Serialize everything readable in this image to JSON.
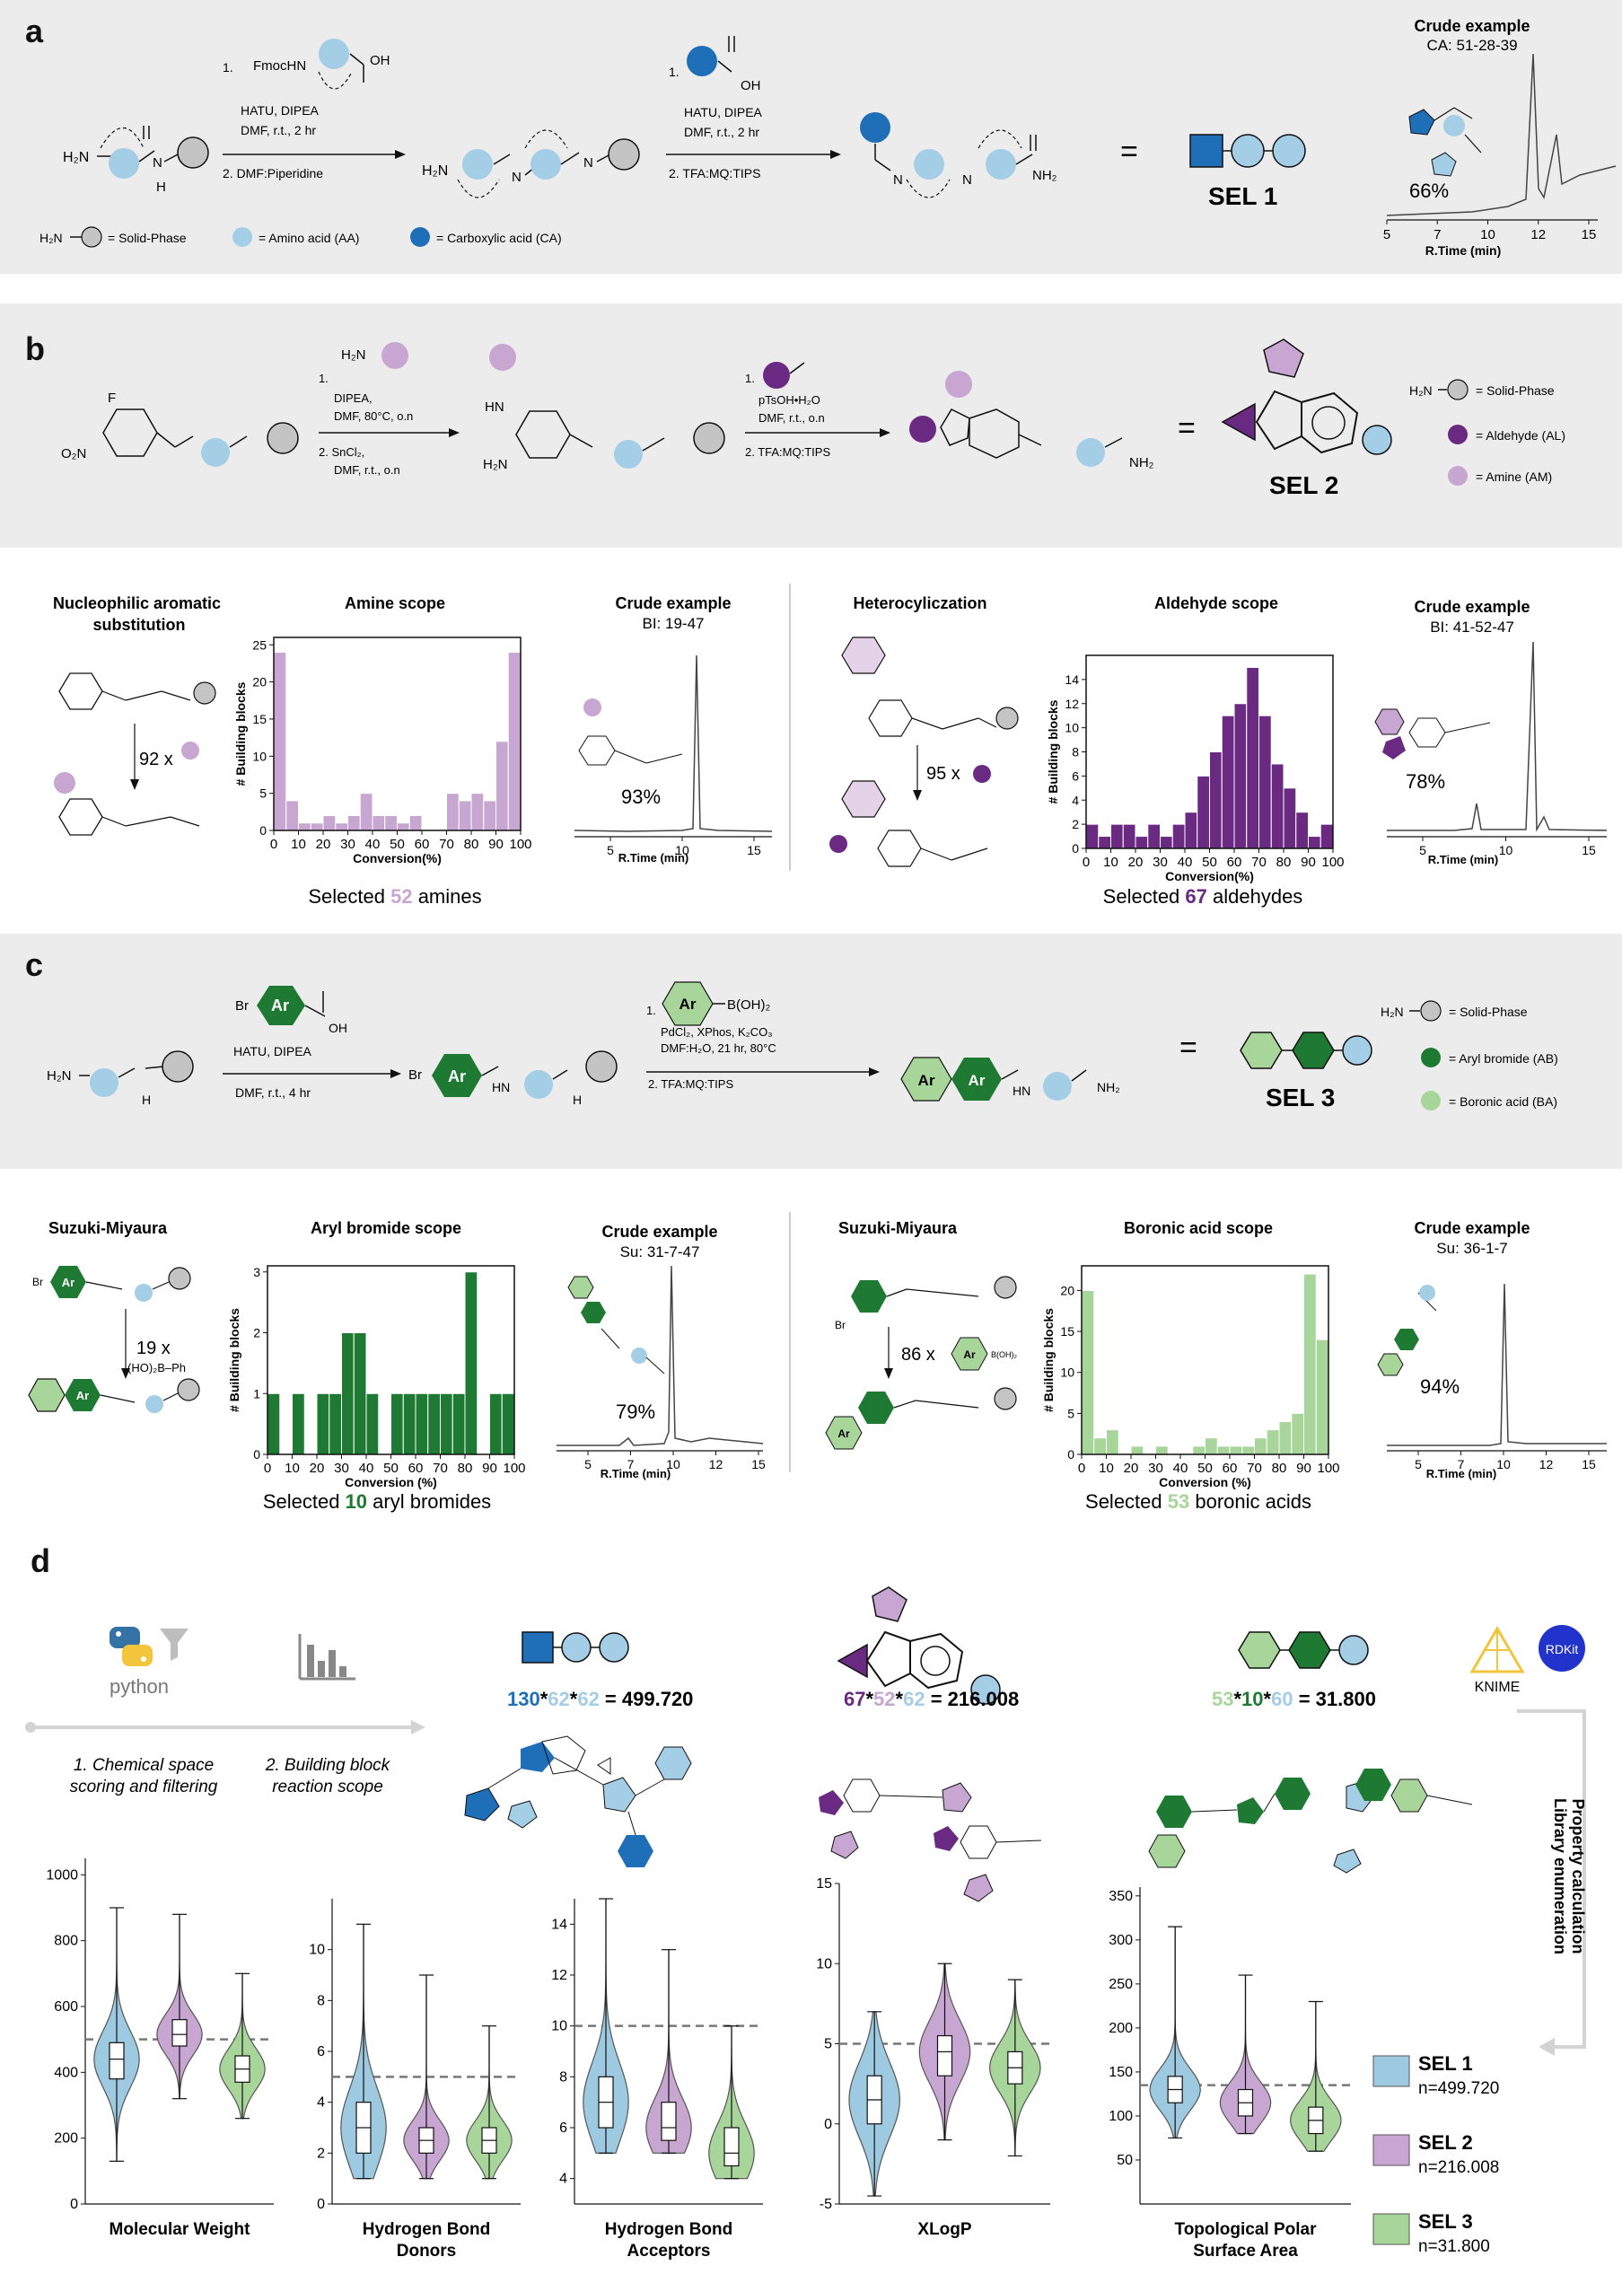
{
  "panel_a": {
    "label": "a",
    "step1": "1.",
    "fmoc": "FmocHN",
    "oh": "OH",
    "reagents1a": "HATU, DIPEA",
    "reagents1b": "DMF, r.t., 2 hr",
    "step2": "2. DMF:Piperidine",
    "step1b": "1.",
    "oh2": "OH",
    "reagents2a": "HATU, DIPEA",
    "reagents2b": "DMF, r.t., 2 hr",
    "step2b": "2. TFA:MQ:TIPS",
    "h2n": "H₂N",
    "nh2": "NH₂",
    "n": "N",
    "h": "H",
    "equals": "=",
    "sel": "SEL 1",
    "legend_solid": "= Solid-Phase",
    "legend_aa": "= Amino acid (AA)",
    "legend_ca": "= Carboxylic acid (CA)",
    "crude_title": "Crude example",
    "crude_sub": "CA: 51-28-39",
    "crude_pct": "66%",
    "crude_ticks": [
      "5",
      "7",
      "10",
      "12",
      "15"
    ],
    "crude_axis": "R.Time (min)"
  },
  "panel_b": {
    "label": "b",
    "f": "F",
    "o2n": "O₂N",
    "step1": "1.",
    "reag1": "DIPEA,",
    "reag2": "DMF, 80°C, o.n",
    "step2": "2. SnCl₂,",
    "reag3": "DMF, r.t., o.n",
    "hn": "HN",
    "h2n": "H₂N",
    "step1b": "1.",
    "reag4": "pTsOH•H₂O",
    "reag5": "DMF, r.t., o.n",
    "step2b": "2. TFA:MQ:TIPS",
    "nh2": "NH₂",
    "equals": "=",
    "sel": "SEL 2",
    "legend_solid": "= Solid-Phase",
    "legend_al": "= Aldehyde (AL)",
    "legend_am": "= Amine (AM)",
    "snar_title": "Nucleophilic aromatic substitution",
    "snar_mult": "92 x",
    "amine_scope_title": "Amine scope",
    "crude1_title": "Crude example",
    "crude1_sub": "BI: 19-47",
    "crude1_pct": "93%",
    "hetero_title": "Heterocyliczation",
    "hetero_mult": "95 x",
    "ald_scope_title": "Aldehyde scope",
    "crude2_title": "Crude example",
    "crude2_sub": "BI: 41-52-47",
    "crude2_pct": "78%",
    "selected_amines_pre": "Selected ",
    "selected_amines_num": "52",
    "selected_amines_post": " amines",
    "selected_ald_pre": "Selected ",
    "selected_ald_num": "67",
    "selected_ald_post": " aldehydes",
    "rt_axis": "R.Time (min)",
    "rt_ticks": [
      "5",
      "10",
      "15"
    ]
  },
  "panel_c": {
    "label": "c",
    "br": "Br",
    "ar": "Ar",
    "oh": "OH",
    "reag1": "HATU, DIPEA",
    "reag2": "DMF, r.t., 4 hr",
    "step1": "1.",
    "boron": "B(OH)₂",
    "reag3": "PdCl₂, XPhos, K₂CO₃",
    "reag4": "DMF:H₂O, 21 hr, 80°C",
    "step2": "2. TFA:MQ:TIPS",
    "h2n": "H₂N",
    "hn": "HN",
    "nh2": "NH₂",
    "equals": "=",
    "sel": "SEL 3",
    "legend_solid": "= Solid-Phase",
    "legend_ab": "= Aryl bromide (AB)",
    "legend_ba": "= Boronic acid (BA)",
    "suzuki1_title": "Suzuki-Miyaura",
    "suzuki1_mult": "19 x",
    "suzuki1_reag": "(HO)₂B–Ph",
    "ab_scope_title": "Aryl bromide scope",
    "crude1_title": "Crude example",
    "crude1_sub": "Su: 31-7-47",
    "crude1_pct": "79%",
    "suzuki2_title": "Suzuki-Miyaura",
    "suzuki2_mult": "86 x",
    "ba_scope_title": "Boronic acid scope",
    "crude2_title": "Crude example",
    "crude2_sub": "Su: 36-1-7",
    "crude2_pct": "94%",
    "selected_ab_pre": "Selected ",
    "selected_ab_num": "10",
    "selected_ab_post": " aryl bromides",
    "selected_ba_pre": "Selected ",
    "selected_ba_num": "53",
    "selected_ba_post": " boronic acids",
    "rt_axis": "R.Time (min)",
    "rt_ticks1": [
      "5",
      "7",
      "10",
      "12",
      "15"
    ],
    "rt_ticks2": [
      "5",
      "7",
      "10",
      "12",
      "15"
    ]
  },
  "panel_d": {
    "label": "d",
    "python": "python",
    "step1a": "1. Chemical space",
    "step1b": "scoring and filtering",
    "step2a": "2. Building block",
    "step2b": "reaction scope",
    "sel1_a": "130",
    "sel1_b": "62",
    "sel1_c": "62",
    "sel1_result": "499.720",
    "sel2_a": "67",
    "sel2_b": "52",
    "sel2_c": "62",
    "sel2_result": "216.008",
    "sel3_a": "53",
    "sel3_b": "10",
    "sel3_c": "60",
    "sel3_result": "31.800",
    "star": "*",
    "eq": " = ",
    "knime": "KNIME",
    "rdkit": "RDKit",
    "vertical_a": "Library enumeration",
    "vertical_b": "Property calculation",
    "legend": [
      {
        "name": "SEL 1",
        "n": "n=499.720"
      },
      {
        "name": "SEL 2",
        "n": "n=216.008"
      },
      {
        "name": "SEL 3",
        "n": "n=31.800"
      }
    ]
  },
  "chart_data": [
    {
      "type": "bar",
      "title": "Amine scope",
      "xlabel": "Conversion(%)",
      "ylabel": "# Building blocks",
      "bin_edges": [
        0,
        5,
        10,
        15,
        20,
        25,
        30,
        35,
        40,
        45,
        50,
        55,
        60,
        65,
        70,
        75,
        80,
        85,
        90,
        95,
        100
      ],
      "values": [
        24,
        4,
        1,
        1,
        2,
        1,
        2,
        5,
        2,
        2,
        1,
        2,
        0,
        0,
        5,
        4,
        5,
        4,
        12,
        24
      ],
      "xticks": [
        "0",
        "10",
        "20",
        "30",
        "40",
        "50",
        "60",
        "70",
        "80",
        "90",
        "100"
      ],
      "yticks": [
        "0",
        "5",
        "10",
        "15",
        "20",
        "25"
      ],
      "ylim": [
        0,
        26
      ],
      "color": "#c8a6d2"
    },
    {
      "type": "bar",
      "title": "Aldehyde scope",
      "xlabel": "Conversion(%)",
      "ylabel": "# Building blocks",
      "bin_edges": [
        0,
        5,
        10,
        15,
        20,
        25,
        30,
        35,
        40,
        45,
        50,
        55,
        60,
        65,
        70,
        75,
        80,
        85,
        90,
        95,
        100
      ],
      "values": [
        2,
        1,
        2,
        2,
        1,
        2,
        1,
        2,
        3,
        6,
        8,
        11,
        12,
        15,
        11,
        7,
        5,
        3,
        1,
        2
      ],
      "xticks": [
        "0",
        "10",
        "20",
        "30",
        "40",
        "50",
        "60",
        "70",
        "80",
        "90",
        "100"
      ],
      "yticks": [
        "0",
        "2",
        "4",
        "6",
        "8",
        "10",
        "12",
        "14"
      ],
      "ylim": [
        0,
        16
      ],
      "color": "#6a2a82"
    },
    {
      "type": "bar",
      "title": "Aryl bromide scope",
      "xlabel": "Conversion (%)",
      "ylabel": "# Building blocks",
      "bin_edges": [
        0,
        5,
        10,
        15,
        20,
        25,
        30,
        35,
        40,
        45,
        50,
        55,
        60,
        65,
        70,
        75,
        80,
        85,
        90,
        95,
        100
      ],
      "values": [
        1,
        0,
        1,
        0,
        1,
        1,
        2,
        2,
        1,
        0,
        1,
        1,
        1,
        1,
        1,
        1,
        3,
        0,
        1,
        1
      ],
      "xticks": [
        "0",
        "10",
        "20",
        "30",
        "40",
        "50",
        "60",
        "70",
        "80",
        "90",
        "100"
      ],
      "yticks": [
        "0",
        "1",
        "2",
        "3"
      ],
      "ylim": [
        0,
        3.1
      ],
      "color": "#1e7a32"
    },
    {
      "type": "bar",
      "title": "Boronic acid scope",
      "xlabel": "Conversion (%)",
      "ylabel": "# Building blocks",
      "bin_edges": [
        0,
        5,
        10,
        15,
        20,
        25,
        30,
        35,
        40,
        45,
        50,
        55,
        60,
        65,
        70,
        75,
        80,
        85,
        90,
        95,
        100
      ],
      "values": [
        20,
        2,
        3,
        0,
        1,
        0,
        1,
        0,
        0,
        1,
        2,
        1,
        1,
        1,
        2,
        3,
        4,
        5,
        22,
        14
      ],
      "xticks": [
        "0",
        "10",
        "20",
        "30",
        "40",
        "50",
        "60",
        "70",
        "80",
        "90",
        "100"
      ],
      "yticks": [
        "0",
        "5",
        "10",
        "15",
        "20"
      ],
      "ylim": [
        0,
        23
      ],
      "color": "#a8d59a"
    },
    {
      "type": "violin",
      "xlabel": "Molecular Weight",
      "yticks": [
        "0",
        "200",
        "400",
        "600",
        "800",
        "1000"
      ],
      "ylim": [
        0,
        1050
      ],
      "reference_line": 500,
      "series": [
        {
          "name": "SEL 1",
          "min": 130,
          "q1": 380,
          "median": 440,
          "q3": 490,
          "max": 900
        },
        {
          "name": "SEL 2",
          "min": 320,
          "q1": 480,
          "median": 515,
          "q3": 560,
          "max": 880
        },
        {
          "name": "SEL 3",
          "min": 260,
          "q1": 370,
          "median": 410,
          "q3": 450,
          "max": 700
        }
      ]
    },
    {
      "type": "violin",
      "xlabel": "Hydrogen Bond Donors",
      "yticks": [
        "0",
        "2",
        "4",
        "6",
        "8",
        "10"
      ],
      "ylim": [
        0,
        12
      ],
      "reference_line": 5,
      "series": [
        {
          "name": "SEL 1",
          "min": 1,
          "q1": 2,
          "median": 3,
          "q3": 4,
          "max": 11
        },
        {
          "name": "SEL 2",
          "min": 1,
          "q1": 2,
          "median": 2.5,
          "q3": 3,
          "max": 9
        },
        {
          "name": "SEL 3",
          "min": 1,
          "q1": 2,
          "median": 2.5,
          "q3": 3,
          "max": 7
        }
      ]
    },
    {
      "type": "violin",
      "xlabel": "Hydrogen Bond Acceptors",
      "yticks": [
        "4",
        "6",
        "8",
        "10",
        "12",
        "14"
      ],
      "ylim": [
        3,
        15
      ],
      "reference_line": 10,
      "series": [
        {
          "name": "SEL 1",
          "min": 5,
          "q1": 6,
          "median": 7,
          "q3": 8,
          "max": 15
        },
        {
          "name": "SEL 2",
          "min": 5,
          "q1": 5.5,
          "median": 6,
          "q3": 7,
          "max": 13
        },
        {
          "name": "SEL 3",
          "min": 4,
          "q1": 4.5,
          "median": 5,
          "q3": 6,
          "max": 10
        }
      ]
    },
    {
      "type": "violin",
      "xlabel": "XLogP",
      "yticks": [
        "-5",
        "0",
        "5",
        "10",
        "15"
      ],
      "ylim": [
        -5,
        15
      ],
      "reference_line": 5,
      "series": [
        {
          "name": "SEL 1",
          "min": -4.5,
          "q1": 0,
          "median": 1.5,
          "q3": 3,
          "max": 7
        },
        {
          "name": "SEL 2",
          "min": -1,
          "q1": 3,
          "median": 4.5,
          "q3": 5.5,
          "max": 10
        },
        {
          "name": "SEL 3",
          "min": -2,
          "q1": 2.5,
          "median": 3.5,
          "q3": 4.5,
          "max": 9
        }
      ]
    },
    {
      "type": "violin",
      "xlabel": "Topological Polar Surface Area",
      "yticks": [
        "50",
        "100",
        "150",
        "200",
        "250",
        "300",
        "350"
      ],
      "ylim": [
        0,
        360
      ],
      "reference_line": 135,
      "series": [
        {
          "name": "SEL 1",
          "min": 75,
          "q1": 115,
          "median": 130,
          "q3": 145,
          "max": 315
        },
        {
          "name": "SEL 2",
          "min": 80,
          "q1": 100,
          "median": 115,
          "q3": 130,
          "max": 260
        },
        {
          "name": "SEL 3",
          "min": 60,
          "q1": 80,
          "median": 95,
          "q3": 110,
          "max": 230
        }
      ]
    }
  ],
  "colors": {
    "aa": "#a4cde6",
    "ca": "#1f6fb8",
    "al": "#6a2a82",
    "am": "#c8a6d2",
    "ab": "#1e7a32",
    "ba": "#a8d59a",
    "solid": "#c4c4c4",
    "panel_bg": "#ececec",
    "sel1": "#9ecae1",
    "sel2": "#c8a6d2",
    "sel3": "#a8d59a"
  }
}
